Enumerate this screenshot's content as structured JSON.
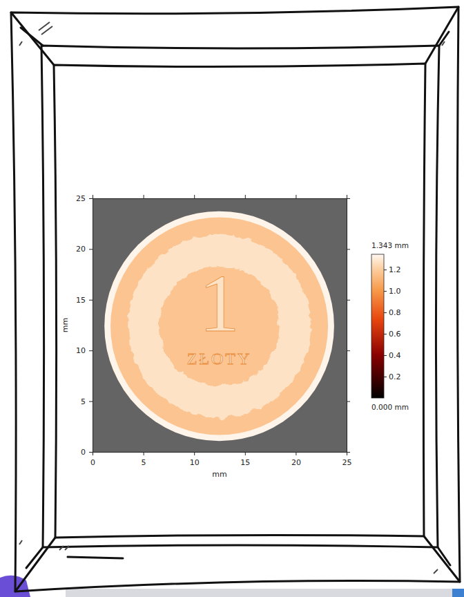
{
  "chart_data": {
    "type": "heatmap",
    "xlabel": "mm",
    "ylabel": "mm",
    "xlim": [
      0,
      25
    ],
    "ylim": [
      0,
      25
    ],
    "xticks": [
      0,
      5,
      10,
      15,
      20,
      25
    ],
    "yticks": [
      0,
      5,
      10,
      15,
      20,
      25
    ],
    "features": [
      {
        "shape": "disk",
        "cx": 12.47,
        "cy": 12.4,
        "r": 11.3,
        "value": 1.32
      },
      {
        "shape": "disk",
        "cx": 12.47,
        "cy": 12.4,
        "r": 10.7,
        "value": 1.02
      },
      {
        "shape": "ring",
        "cx": 12.47,
        "cy": 12.4,
        "r_inner": 5.9,
        "r_outer": 9.0,
        "value": 1.2
      }
    ],
    "annotations": [
      {
        "text": "1",
        "x": 12.47,
        "y": 14.6,
        "value": 1.2
      },
      {
        "text": "ZŁOTY",
        "x": 12.47,
        "y": 9.2,
        "value": 1.22
      }
    ],
    "colorbar": {
      "range": [
        0,
        1.343
      ],
      "ticks": [
        0.2,
        0.4,
        0.6,
        0.8,
        {
          "value": 1,
          "label": "1.0"
        },
        1.2
      ],
      "range_labels": [
        "0.000 mm",
        "1.343 mm"
      ]
    }
  }
}
